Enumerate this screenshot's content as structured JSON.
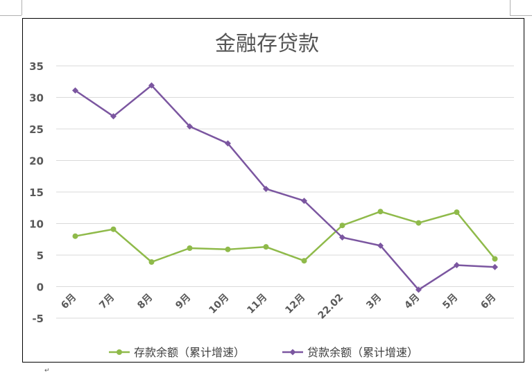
{
  "chart_data": {
    "type": "line",
    "title": "金融存贷款",
    "categories": [
      "6月",
      "7月",
      "8月",
      "9月",
      "10月",
      "11月",
      "12月",
      "22.02",
      "3月",
      "4月",
      "5月",
      "6月"
    ],
    "ylim": [
      -5,
      35
    ],
    "yticks": [
      -5,
      0,
      5,
      10,
      15,
      20,
      25,
      30,
      35
    ],
    "grid": true,
    "legend": "bottom",
    "series": [
      {
        "name": "存款余额（累计增速）",
        "color": "#8fba4a",
        "marker": "circle",
        "values": [
          8.0,
          9.1,
          3.9,
          6.1,
          5.9,
          6.3,
          4.1,
          9.7,
          11.9,
          10.1,
          11.8,
          4.4
        ]
      },
      {
        "name": "贷款余额（累计增速）",
        "color": "#7b56a0",
        "marker": "diamond",
        "values": [
          31.1,
          27.0,
          31.9,
          25.4,
          22.7,
          15.5,
          13.6,
          7.8,
          6.5,
          -0.5,
          3.4,
          3.1
        ]
      }
    ]
  },
  "doc": {
    "paragraph_mark": "↵"
  }
}
